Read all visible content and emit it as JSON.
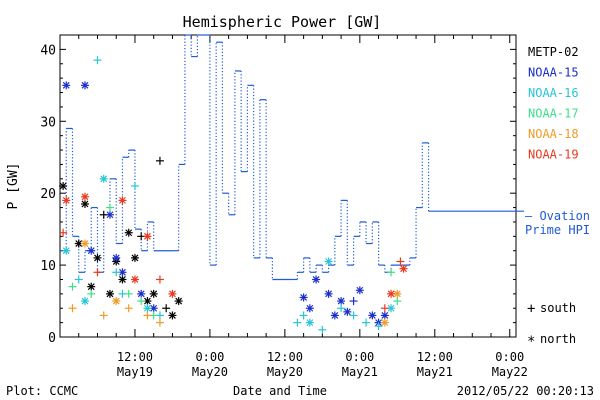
{
  "chart_data": {
    "type": "scatter",
    "title": "Hemispheric Power [GW]",
    "ylabel": "P [GW]",
    "xlabel": "Date and Time",
    "footer_left": "Plot: CCMC",
    "footer_right": "2012/05/22 00:20:13",
    "ylim": [
      0,
      42
    ],
    "y_ticks": [
      0,
      10,
      20,
      30,
      40
    ],
    "xlim_hours": [
      0,
      54
    ],
    "x_ticks": [
      {
        "hour": 9,
        "label": "12:00",
        "date": "May19"
      },
      {
        "hour": 21,
        "label": "0:00",
        "date": "May20"
      },
      {
        "hour": 33,
        "label": "12:00",
        "date": "May20"
      },
      {
        "hour": 45,
        "label": "0:00",
        "date": "May21"
      },
      {
        "hour": 57,
        "label": "12:00",
        "date": "May21"
      },
      {
        "hour": 69,
        "label": "0:00",
        "date": "May22"
      }
    ],
    "legend_location": "right",
    "series": [
      {
        "name": "METP-02",
        "color": "#000000"
      },
      {
        "name": "NOAA-15",
        "color": "#1a2fc9"
      },
      {
        "name": "NOAA-16",
        "color": "#29c4d6"
      },
      {
        "name": "NOAA-17",
        "color": "#3fe08a"
      },
      {
        "name": "NOAA-18",
        "color": "#f09a2a"
      },
      {
        "name": "NOAA-19",
        "color": "#e83a1e"
      }
    ],
    "ovation": {
      "label_line1": "— Ovation",
      "label_line2": "Prime HPI",
      "color": "#1f5bd6",
      "points": [
        [
          -3,
          12
        ],
        [
          -2,
          29
        ],
        [
          -1,
          14
        ],
        [
          0,
          9
        ],
        [
          1,
          12
        ],
        [
          2,
          18
        ],
        [
          3,
          9
        ],
        [
          4,
          17
        ],
        [
          5,
          22
        ],
        [
          6,
          13
        ],
        [
          7,
          25
        ],
        [
          8,
          26
        ],
        [
          9,
          15
        ],
        [
          10,
          12
        ],
        [
          11,
          16
        ],
        [
          12,
          12
        ],
        [
          15,
          12
        ],
        [
          16,
          24
        ],
        [
          17,
          42
        ],
        [
          18,
          39
        ],
        [
          19,
          42
        ],
        [
          21,
          10
        ],
        [
          22,
          41
        ],
        [
          23,
          20
        ],
        [
          24,
          17
        ],
        [
          25,
          37
        ],
        [
          26,
          23
        ],
        [
          27,
          35
        ],
        [
          28,
          11
        ],
        [
          29,
          33
        ],
        [
          30,
          11
        ],
        [
          31,
          8
        ],
        [
          34,
          8
        ],
        [
          35,
          9
        ],
        [
          36,
          11
        ],
        [
          37,
          9
        ],
        [
          38,
          10
        ],
        [
          39,
          9
        ],
        [
          40,
          10
        ],
        [
          41,
          14
        ],
        [
          42,
          19
        ],
        [
          43,
          10
        ],
        [
          44,
          14
        ],
        [
          45,
          16
        ],
        [
          46,
          13
        ],
        [
          47,
          16
        ],
        [
          48,
          10
        ],
        [
          49,
          9
        ],
        [
          50,
          10
        ],
        [
          53,
          11
        ],
        [
          54,
          18
        ],
        [
          55,
          27
        ],
        [
          56,
          17.5
        ]
      ]
    },
    "markers": [
      {
        "symbol": "+",
        "label": "south"
      },
      {
        "symbol": "*",
        "label": "north"
      }
    ],
    "scatter_points": [
      {
        "s": 0,
        "h": -2.5,
        "v": 21,
        "m": "*"
      },
      {
        "s": 0,
        "h": 0,
        "v": 13,
        "m": "*"
      },
      {
        "s": 0,
        "h": 1,
        "v": 18.5,
        "m": "*"
      },
      {
        "s": 0,
        "h": 3,
        "v": 11,
        "m": "*"
      },
      {
        "s": 0,
        "h": 4,
        "v": 17,
        "m": "+"
      },
      {
        "s": 0,
        "h": 6,
        "v": 10.5,
        "m": "*"
      },
      {
        "s": 0,
        "h": 7,
        "v": 8,
        "m": "*"
      },
      {
        "s": 0,
        "h": 8,
        "v": 14.5,
        "m": "*"
      },
      {
        "s": 0,
        "h": 9,
        "v": 11,
        "m": "*"
      },
      {
        "s": 0,
        "h": 10,
        "v": 14,
        "m": "+"
      },
      {
        "s": 0,
        "h": 11,
        "v": 5,
        "m": "*"
      },
      {
        "s": 0,
        "h": 13,
        "v": 24.5,
        "m": "+"
      },
      {
        "s": 0,
        "h": 14,
        "v": 4,
        "m": "+"
      },
      {
        "s": 0,
        "h": 15,
        "v": 3,
        "m": "*"
      },
      {
        "s": 0,
        "h": 16,
        "v": 5,
        "m": "*"
      },
      {
        "s": 0,
        "h": 2,
        "v": 7,
        "m": "*"
      },
      {
        "s": 0,
        "h": 5,
        "v": 6,
        "m": "*"
      },
      {
        "s": 0,
        "h": 12,
        "v": 6,
        "m": "*"
      },
      {
        "s": 1,
        "h": -2,
        "v": 35,
        "m": "*"
      },
      {
        "s": 1,
        "h": 1,
        "v": 35,
        "m": "*"
      },
      {
        "s": 1,
        "h": 2,
        "v": 12,
        "m": "*"
      },
      {
        "s": 1,
        "h": 5,
        "v": 17,
        "m": "*"
      },
      {
        "s": 1,
        "h": 6,
        "v": 11,
        "m": "*"
      },
      {
        "s": 1,
        "h": 7,
        "v": 9,
        "m": "*"
      },
      {
        "s": 1,
        "h": 10,
        "v": 6,
        "m": "*"
      },
      {
        "s": 1,
        "h": 12,
        "v": 4,
        "m": "*"
      },
      {
        "s": 1,
        "h": 36,
        "v": 5.5,
        "m": "*"
      },
      {
        "s": 1,
        "h": 37,
        "v": 4,
        "m": "*"
      },
      {
        "s": 1,
        "h": 38,
        "v": 8,
        "m": "*"
      },
      {
        "s": 1,
        "h": 40,
        "v": 6,
        "m": "*"
      },
      {
        "s": 1,
        "h": 41,
        "v": 3,
        "m": "*"
      },
      {
        "s": 1,
        "h": 42,
        "v": 5,
        "m": "*"
      },
      {
        "s": 1,
        "h": 43,
        "v": 3.5,
        "m": "*"
      },
      {
        "s": 1,
        "h": 44,
        "v": 5,
        "m": "+"
      },
      {
        "s": 1,
        "h": 45,
        "v": 6.5,
        "m": "*"
      },
      {
        "s": 1,
        "h": 47,
        "v": 3,
        "m": "*"
      },
      {
        "s": 1,
        "h": 48,
        "v": 2,
        "m": "*"
      },
      {
        "s": 1,
        "h": 49,
        "v": 3,
        "m": "*"
      },
      {
        "s": 2,
        "h": -2,
        "v": 12,
        "m": "*"
      },
      {
        "s": 2,
        "h": 0,
        "v": 8,
        "m": "+"
      },
      {
        "s": 2,
        "h": 1,
        "v": 5,
        "m": "*"
      },
      {
        "s": 2,
        "h": 3,
        "v": 38.5,
        "m": "+"
      },
      {
        "s": 2,
        "h": 4,
        "v": 22,
        "m": "*"
      },
      {
        "s": 2,
        "h": 6,
        "v": 9,
        "m": "+"
      },
      {
        "s": 2,
        "h": 7,
        "v": 6,
        "m": "+"
      },
      {
        "s": 2,
        "h": 9,
        "v": 21,
        "m": "+"
      },
      {
        "s": 2,
        "h": 11,
        "v": 4,
        "m": "*"
      },
      {
        "s": 2,
        "h": 13,
        "v": 3,
        "m": "+"
      },
      {
        "s": 2,
        "h": 35,
        "v": 2,
        "m": "+"
      },
      {
        "s": 2,
        "h": 36,
        "v": 3,
        "m": "+"
      },
      {
        "s": 2,
        "h": 37,
        "v": 2,
        "m": "*"
      },
      {
        "s": 2,
        "h": 39,
        "v": 1,
        "m": "+"
      },
      {
        "s": 2,
        "h": 40,
        "v": 10.5,
        "m": "*"
      },
      {
        "s": 2,
        "h": 42,
        "v": 4,
        "m": "+"
      },
      {
        "s": 2,
        "h": 44,
        "v": 3,
        "m": "+"
      },
      {
        "s": 2,
        "h": 46,
        "v": 2,
        "m": "+"
      },
      {
        "s": 2,
        "h": 48,
        "v": 1.5,
        "m": "+"
      },
      {
        "s": 2,
        "h": 50,
        "v": 4,
        "m": "*"
      },
      {
        "s": 3,
        "h": -1,
        "v": 7,
        "m": "+"
      },
      {
        "s": 3,
        "h": 2,
        "v": 6,
        "m": "+"
      },
      {
        "s": 3,
        "h": 5,
        "v": 18,
        "m": "+"
      },
      {
        "s": 3,
        "h": 8,
        "v": 6,
        "m": "+"
      },
      {
        "s": 3,
        "h": 10,
        "v": 5,
        "m": "+"
      },
      {
        "s": 3,
        "h": 12,
        "v": 3,
        "m": "+"
      },
      {
        "s": 3,
        "h": 50,
        "v": 9,
        "m": "+"
      },
      {
        "s": 3,
        "h": 51,
        "v": 5,
        "m": "+"
      },
      {
        "s": 4,
        "h": -1,
        "v": 4,
        "m": "+"
      },
      {
        "s": 4,
        "h": 1,
        "v": 13,
        "m": "*"
      },
      {
        "s": 4,
        "h": 4,
        "v": 3,
        "m": "+"
      },
      {
        "s": 4,
        "h": 6,
        "v": 5,
        "m": "*"
      },
      {
        "s": 4,
        "h": 8,
        "v": 4,
        "m": "+"
      },
      {
        "s": 4,
        "h": 11,
        "v": 3,
        "m": "+"
      },
      {
        "s": 4,
        "h": 13,
        "v": 2,
        "m": "+"
      },
      {
        "s": 4,
        "h": 49,
        "v": 2,
        "m": "*"
      },
      {
        "s": 4,
        "h": 51,
        "v": 6,
        "m": "*"
      },
      {
        "s": 5,
        "h": -2.5,
        "v": 14.5,
        "m": "+"
      },
      {
        "s": 5,
        "h": -2,
        "v": 19,
        "m": "*"
      },
      {
        "s": 5,
        "h": 1,
        "v": 19.5,
        "m": "*"
      },
      {
        "s": 5,
        "h": 3,
        "v": 9,
        "m": "+"
      },
      {
        "s": 5,
        "h": 7,
        "v": 19,
        "m": "*"
      },
      {
        "s": 5,
        "h": 9,
        "v": 8,
        "m": "*"
      },
      {
        "s": 5,
        "h": 11,
        "v": 14,
        "m": "*"
      },
      {
        "s": 5,
        "h": 13,
        "v": 8,
        "m": "+"
      },
      {
        "s": 5,
        "h": 15,
        "v": 6,
        "m": "*"
      },
      {
        "s": 5,
        "h": 49,
        "v": 4,
        "m": "+"
      },
      {
        "s": 5,
        "h": 50,
        "v": 6,
        "m": "*"
      },
      {
        "s": 5,
        "h": 52,
        "v": 9.5,
        "m": "*"
      },
      {
        "s": 5,
        "h": 51.5,
        "v": 10.5,
        "m": "+"
      }
    ]
  }
}
